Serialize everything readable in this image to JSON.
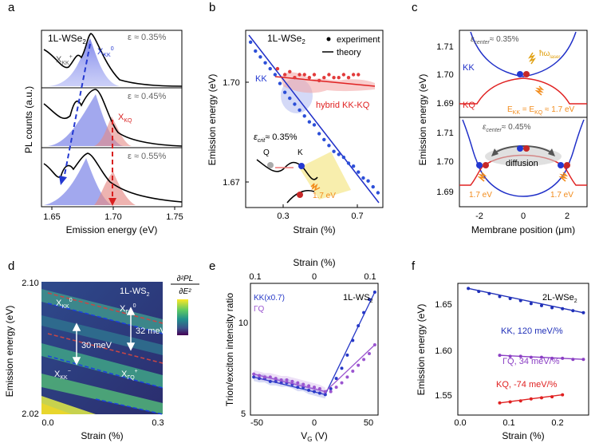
{
  "panels": {
    "a": {
      "letter": "a",
      "ylabel": "PL counts (a.u.)",
      "xlabel": "Emission energy (eV)",
      "xticks": [
        "1.65",
        "1.70",
        "1.75"
      ],
      "material": "1L-WSe",
      "material_sub": "2",
      "strain_labels": [
        "ε ≈ 0.35%",
        "ε ≈ 0.45%",
        "ε ≈ 0.55%"
      ],
      "peak_labels": {
        "xkk_plus": "X",
        "xkk_plus_sub": "KK",
        "xkk_plus_sup": "+",
        "xkk0": "X",
        "xkk0_sub": "KK",
        "xkk0_sup": "0",
        "xkq": "X",
        "xkq_sub": "KQ"
      }
    },
    "b": {
      "letter": "b",
      "ylabel": "Emission energy (eV)",
      "xlabel": "Strain (%)",
      "xticks": [
        "0.3",
        "0.7"
      ],
      "yticks": [
        "1.67",
        "1.70"
      ],
      "material": "1L-WSe",
      "material_sub": "2",
      "legend": [
        "experiment",
        "theory"
      ],
      "kk_label": "KK",
      "hybrid_label": "hybrid KK-KQ",
      "crit_label": "ε",
      "crit_sub": "crit",
      "crit_value": "≈ 0.35%",
      "q_label": "Q",
      "k_label": "K",
      "photon_label": "1.7 eV"
    },
    "c": {
      "letter": "c",
      "ylabel": "Emission energy (eV)",
      "xlabel": "Membrane position (μm)",
      "xticks": [
        "-2",
        "0",
        "2"
      ],
      "yticks_top": [
        "1.69",
        "1.70",
        "1.71"
      ],
      "yticks_bottom": [
        "1.69",
        "1.70",
        "1.71"
      ],
      "eps_center_top": "≈ 0.35%",
      "eps_center_bottom": "≈ 0.45%",
      "eps_label": "ε",
      "eps_sub": "center",
      "kk_label": "KK",
      "kq_label": "KQ",
      "laser_label": "ħω",
      "laser_sub": "laser",
      "ekk_label": "E",
      "ekk_sub": "KK",
      "ekq_text": " = E",
      "ekq_sub": "KQ",
      "ekk_value": " ≈ 1.7 eV",
      "diffusion_label": "diffusion",
      "photon_left": "1.7 eV",
      "photon_right": "1.7 eV"
    },
    "d": {
      "letter": "d",
      "ylabel": "Emission energy (eV)",
      "xlabel": "Strain (%)",
      "xticks": [
        "0.0",
        "0.3"
      ],
      "yticks": [
        "2.02",
        "2.10"
      ],
      "material": "1L-WS",
      "material_sub": "2",
      "colorbar_num": "∂²PL",
      "colorbar_den": "∂E²",
      "gap1": "30 meV",
      "gap2": "32 meV",
      "labels": {
        "xkk0": "X",
        "xkk0_sub": "KK",
        "xkk0_sup": "0",
        "xgq0": "X",
        "xgq0_sub": "ΓQ",
        "xgq0_sup": "0",
        "xkkm": "X",
        "xkkm_sub": "KK",
        "xkkm_sup": "−",
        "xgqp": "X",
        "xgqp_sub": "ΓQ",
        "xgqp_sup": "+"
      }
    },
    "e": {
      "letter": "e",
      "top_xlabel": "Strain (%)",
      "top_xticks": [
        "0.1",
        "0",
        "0.1"
      ],
      "ylabel": "Trion/exciton intensity ratio",
      "xlabel": "V",
      "xlabel_sub": "G",
      "xlabel_unit": " (V)",
      "xticks": [
        "-50",
        "0",
        "50"
      ],
      "yticks": [
        "5",
        "10"
      ],
      "material": "1L-WS",
      "material_sub": "2",
      "legend_kk": "KK(x0.7)",
      "legend_gq": "ΓQ"
    },
    "f": {
      "letter": "f",
      "ylabel": "Emission energy (eV)",
      "xlabel": "Strain (%)",
      "xticks": [
        "0.0",
        "0.1",
        "0.2"
      ],
      "yticks": [
        "1.55",
        "1.60",
        "1.65"
      ],
      "material": "2L-WSe",
      "material_sub": "2",
      "kk_label": "KK, 120 meV/%",
      "gq_label": "ΓQ, 34 meV/%",
      "kq_label": "KQ, -74 meV/%"
    }
  },
  "chart_data": [
    {
      "type": "scatter",
      "panel": "b",
      "xlabel": "Strain (%)",
      "ylabel": "Emission energy (eV)",
      "xlim": [
        0.2,
        0.76
      ],
      "ylim": [
        1.655,
        1.715
      ],
      "series": [
        {
          "name": "experiment",
          "color": "#2c4fd8",
          "x": [
            0.22,
            0.24,
            0.26,
            0.28,
            0.3,
            0.32,
            0.34,
            0.36,
            0.38,
            0.4,
            0.42,
            0.44,
            0.46,
            0.48,
            0.5,
            0.52,
            0.54,
            0.56,
            0.58,
            0.6,
            0.62,
            0.64,
            0.66,
            0.68,
            0.7,
            0.72,
            0.74
          ],
          "y": [
            1.711,
            1.708,
            1.706,
            1.704,
            1.702,
            1.7,
            1.697,
            1.694,
            1.692,
            1.69,
            1.688,
            1.686,
            1.684,
            1.683,
            1.68,
            1.678,
            1.676,
            1.674,
            1.673,
            1.672,
            1.67,
            1.669,
            1.667,
            1.665,
            1.664,
            1.662,
            1.66
          ]
        },
        {
          "name": "hybrid KK-KQ",
          "color": "#e23b3b",
          "x": [
            0.33,
            0.36,
            0.38,
            0.4,
            0.42,
            0.44,
            0.46,
            0.48,
            0.5,
            0.52,
            0.54,
            0.56,
            0.58,
            0.6,
            0.62,
            0.64,
            0.66
          ],
          "y": [
            1.702,
            1.7,
            1.701,
            1.699,
            1.7,
            1.7,
            1.699,
            1.7,
            1.698,
            1.699,
            1.7,
            1.699,
            1.699,
            1.7,
            1.699,
            1.7,
            1.7
          ]
        }
      ]
    },
    {
      "type": "line",
      "panel": "f",
      "xlabel": "Strain (%)",
      "ylabel": "Emission energy (eV)",
      "xlim": [
        0.0,
        0.25
      ],
      "ylim": [
        1.54,
        1.67
      ],
      "series": [
        {
          "name": "KK, 120 meV/%",
          "color": "#1f2fb8",
          "x": [
            0.02,
            0.04,
            0.06,
            0.08,
            0.1,
            0.12,
            0.14,
            0.16,
            0.18,
            0.2,
            0.22,
            0.24
          ],
          "y": [
            1.665,
            1.662,
            1.66,
            1.657,
            1.655,
            1.653,
            1.65,
            1.648,
            1.646,
            1.645,
            1.643,
            1.641
          ]
        },
        {
          "name": "ΓQ, 34 meV/%",
          "color": "#8b3fc4",
          "x": [
            0.08,
            0.1,
            0.12,
            0.14,
            0.16,
            0.18,
            0.2,
            0.22,
            0.24
          ],
          "y": [
            1.599,
            1.598,
            1.598,
            1.597,
            1.597,
            1.596,
            1.596,
            1.595,
            1.595
          ]
        },
        {
          "name": "KQ, -74 meV/%",
          "color": "#e02020",
          "x": [
            0.08,
            0.1,
            0.12,
            0.14,
            0.16,
            0.18,
            0.2
          ],
          "y": [
            1.552,
            1.553,
            1.554,
            1.556,
            1.557,
            1.558,
            1.56
          ]
        }
      ]
    },
    {
      "type": "scatter",
      "panel": "e",
      "xlabel": "VG (V)",
      "ylabel": "Trion/exciton intensity ratio",
      "xlim": [
        -58,
        58
      ],
      "ylim": [
        4,
        13
      ],
      "series": [
        {
          "name": "KK(x0.7)",
          "color": "#2638c7",
          "x": [
            -55,
            -50,
            -45,
            -40,
            -35,
            -30,
            -25,
            -20,
            -15,
            -10,
            -5,
            0,
            5,
            10,
            15,
            20,
            25,
            30,
            35,
            40,
            45,
            50,
            55
          ],
          "y": [
            6.6,
            6.5,
            6.5,
            6.3,
            6.3,
            6.2,
            6.2,
            6.1,
            5.9,
            5.9,
            5.7,
            5.6,
            5.5,
            5.4,
            5.8,
            6.5,
            7.2,
            8.1,
            9.1,
            10.1,
            11.0,
            11.9,
            12.4
          ]
        },
        {
          "name": "ΓQ",
          "color": "#9b55d0",
          "x": [
            -55,
            -50,
            -45,
            -40,
            -35,
            -30,
            -25,
            -20,
            -15,
            -10,
            -5,
            0,
            5,
            10,
            15,
            20,
            25,
            30,
            35,
            40,
            45,
            50,
            55
          ],
          "y": [
            6.8,
            6.7,
            6.6,
            6.6,
            6.5,
            6.4,
            6.4,
            6.3,
            6.2,
            6.1,
            6.0,
            5.9,
            5.8,
            5.6,
            5.6,
            5.9,
            6.2,
            6.6,
            7.0,
            7.4,
            7.8,
            8.2,
            8.8
          ]
        }
      ]
    }
  ]
}
